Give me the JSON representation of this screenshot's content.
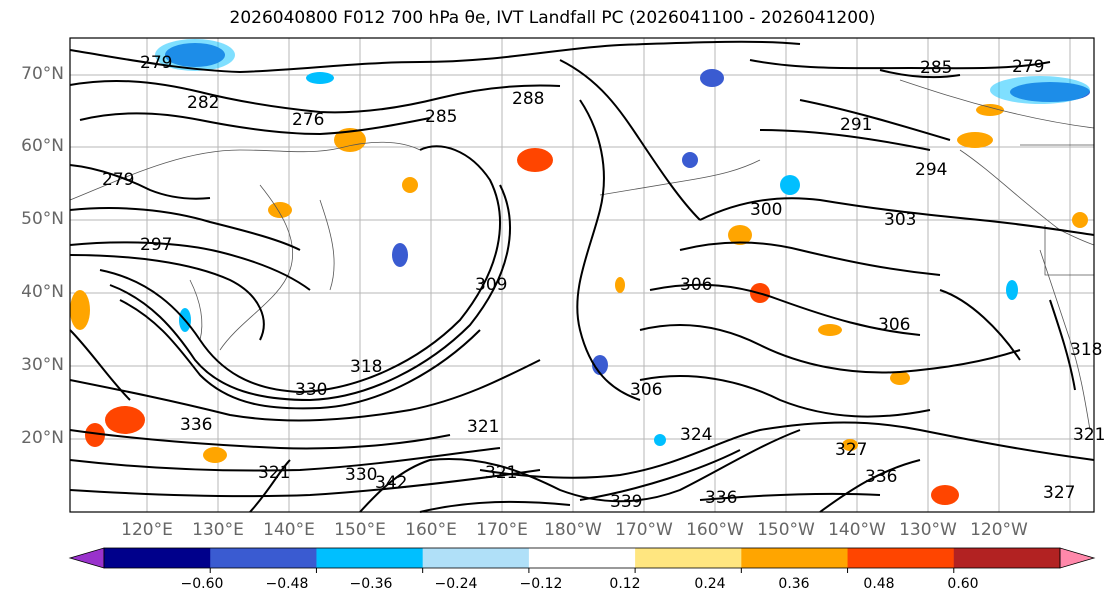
{
  "title": "2026040800 F012 700 hPa θe, IVT Landfall PC (2026041100 - 2026041200)",
  "map": {
    "lat_labels": [
      "70°N",
      "60°N",
      "50°N",
      "40°N",
      "30°N",
      "20°N"
    ],
    "lon_labels": [
      "120°E",
      "130°E",
      "140°E",
      "150°E",
      "160°E",
      "170°E",
      "180°W",
      "170°W",
      "160°W",
      "150°W",
      "140°W",
      "130°W",
      "120°W"
    ],
    "contour_labels": [
      {
        "text": "279"
      },
      {
        "text": "282"
      },
      {
        "text": "276"
      },
      {
        "text": "285"
      },
      {
        "text": "288"
      },
      {
        "text": "285"
      },
      {
        "text": "279"
      },
      {
        "text": "291"
      },
      {
        "text": "279"
      },
      {
        "text": "297"
      },
      {
        "text": "300"
      },
      {
        "text": "303"
      },
      {
        "text": "309"
      },
      {
        "text": "306"
      },
      {
        "text": "306"
      },
      {
        "text": "306"
      },
      {
        "text": "318"
      },
      {
        "text": "330"
      },
      {
        "text": "336"
      },
      {
        "text": "321"
      },
      {
        "text": "321"
      },
      {
        "text": "324"
      },
      {
        "text": "327"
      },
      {
        "text": "321"
      },
      {
        "text": "330"
      },
      {
        "text": "342"
      },
      {
        "text": "339"
      },
      {
        "text": "336"
      },
      {
        "text": "336"
      },
      {
        "text": "327"
      },
      {
        "text": "321"
      },
      {
        "text": "318"
      },
      {
        "text": "294"
      }
    ]
  },
  "colorbar": {
    "ticks": [
      "−0.60",
      "−0.48",
      "−0.36",
      "−0.24",
      "−0.12",
      "0.12",
      "0.24",
      "0.36",
      "0.48",
      "0.60"
    ],
    "colors": [
      "#9932cc",
      "#00008b",
      "#3a5bd1",
      "#00bfff",
      "#b0e0f8",
      "#ffffff",
      "#ffe680",
      "#ffa500",
      "#ff4500",
      "#b22222",
      "#ff88aa"
    ]
  }
}
